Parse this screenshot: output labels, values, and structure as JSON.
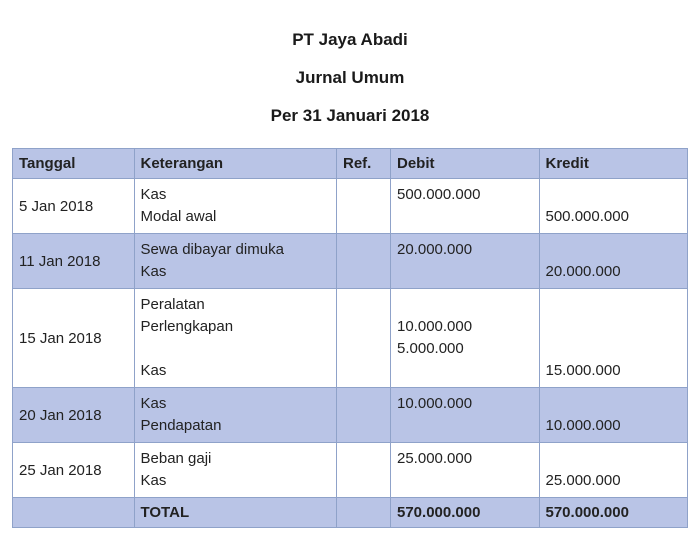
{
  "header": {
    "company": "PT Jaya Abadi",
    "title": "Jurnal Umum",
    "period": "Per 31 Januari 2018"
  },
  "columns": {
    "tanggal": "Tanggal",
    "keterangan": "Keterangan",
    "ref": "Ref.",
    "debit": "Debit",
    "kredit": "Kredit"
  },
  "rows": [
    {
      "alt": false,
      "tanggal": "5 Jan 2018",
      "keterangan": [
        "Kas",
        "Modal awal"
      ],
      "ref": "",
      "debit": [
        "500.000.000",
        ""
      ],
      "kredit": [
        "",
        "500.000.000"
      ]
    },
    {
      "alt": true,
      "tanggal": "11 Jan 2018",
      "keterangan": [
        "Sewa dibayar dimuka",
        "Kas"
      ],
      "ref": "",
      "debit": [
        "20.000.000",
        ""
      ],
      "kredit": [
        "",
        "20.000.000"
      ]
    },
    {
      "alt": false,
      "tanggal": "15 Jan 2018",
      "keterangan": [
        "Peralatan",
        "Perlengkapan",
        "",
        "Kas"
      ],
      "ref": "",
      "debit": [
        "",
        "10.000.000",
        "5.000.000",
        ""
      ],
      "kredit": [
        "",
        "",
        "",
        "15.000.000"
      ]
    },
    {
      "alt": true,
      "tanggal": "20 Jan 2018",
      "keterangan": [
        "Kas",
        "Pendapatan"
      ],
      "ref": "",
      "debit": [
        "10.000.000",
        ""
      ],
      "kredit": [
        "",
        "10.000.000"
      ]
    },
    {
      "alt": false,
      "tanggal": "25 Jan 2018",
      "keterangan": [
        "Beban gaji",
        "Kas"
      ],
      "ref": "",
      "debit": [
        "25.000.000",
        ""
      ],
      "kredit": [
        "",
        "25.000.000"
      ]
    }
  ],
  "total": {
    "label": "TOTAL",
    "debit": "570.000.000",
    "kredit": "570.000.000"
  },
  "colors": {
    "header_bg": "#b9c4e6",
    "border": "#8fa2c9",
    "text": "#222222",
    "background": "#ffffff"
  }
}
